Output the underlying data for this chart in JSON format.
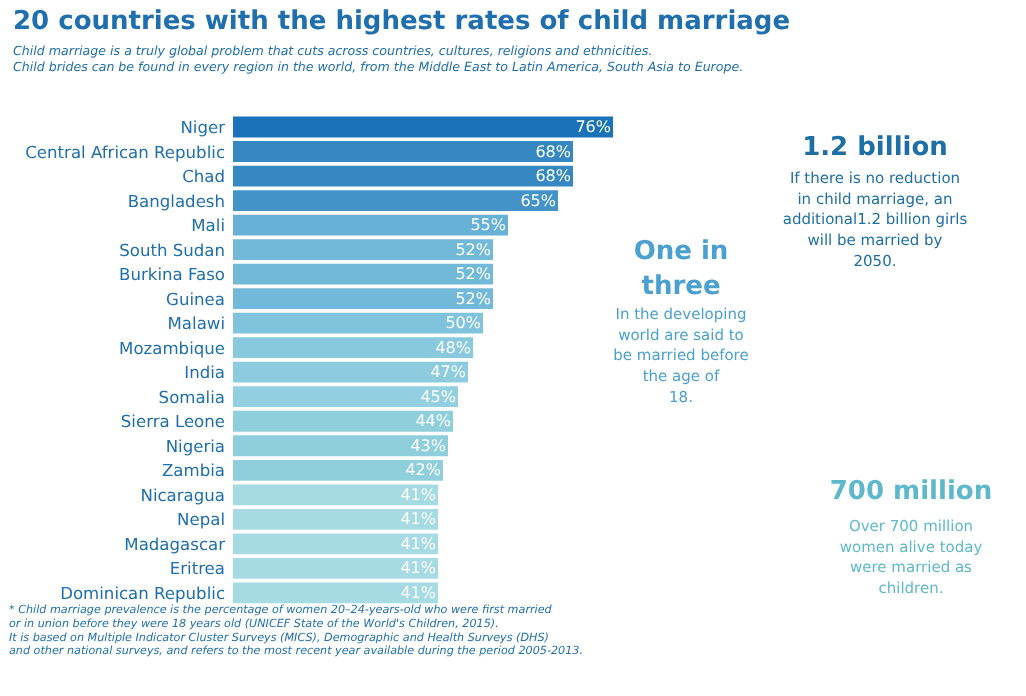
{
  "chart_data": {
    "type": "bar",
    "orientation": "horizontal",
    "title": "20 countries with the highest rates of child marriage",
    "subtitle": "Child marriage is a truly global problem that cuts across countries,  cultures, religions and ethnicities.\nChild brides can be found in every region in the world, from the Middle East to Latin America, South Asia to Europe.",
    "categories": [
      "Niger",
      "Central African Republic",
      "Chad",
      "Bangladesh",
      "Mali",
      "South Sudan",
      "Burkina Faso",
      "Guinea",
      "Malawi",
      "Mozambique",
      "India",
      "Somalia",
      "Sierra Leone",
      "Nigeria",
      "Zambia",
      "Nicaragua",
      "Nepal",
      "Madagascar",
      "Eritrea",
      "Dominican Republic"
    ],
    "values": [
      76,
      68,
      68,
      65,
      55,
      52,
      52,
      52,
      50,
      48,
      47,
      45,
      44,
      43,
      42,
      41,
      41,
      41,
      41,
      41
    ],
    "value_labels": [
      "76%",
      "68%",
      "68%",
      "65%",
      "55%",
      "52%",
      "52%",
      "52%",
      "50%",
      "48%",
      "47%",
      "45%",
      "44%",
      "43%",
      "42%",
      "41%",
      "41%",
      "41%",
      "41%",
      "41%"
    ],
    "colors": [
      "#1a72b8",
      "#3688c3",
      "#3688c3",
      "#4393c8",
      "#68b1d6",
      "#72b9d9",
      "#72b9d9",
      "#72b9d9",
      "#80c3dc",
      "#88c9dd",
      "#8dccdf",
      "#92cfe0",
      "#8fcfdc",
      "#8fcfdc",
      "#8fcfdc",
      "#a6dbe3",
      "#a6dbe3",
      "#a6dbe3",
      "#a6dbe3",
      "#a6dbe3"
    ],
    "annotations": [
      "1.2 billion",
      "If there is no reduction\nin child marriage, an\nadditional1.2 billion girls\nwill be married by\n2050.",
      "One in\nthree",
      "In the developing\nworld are said to\nbe married before\nthe age of\n18.",
      "700 million",
      "Over 700 million\nwomen alive today\nwere married as\nchildren.",
      "* Child marriage prevalence is the percentage of women 20–24-years-old who were first married\nor in union before they were 18 years old (UNICEF State of the World's Children, 2015).\nIt is based on Multiple Indicator Cluster Surveys (MICS), Demographic and Health Surveys (DHS)\nand other national surveys, and refers to the most recent year available during the period 2005-2013."
    ]
  }
}
